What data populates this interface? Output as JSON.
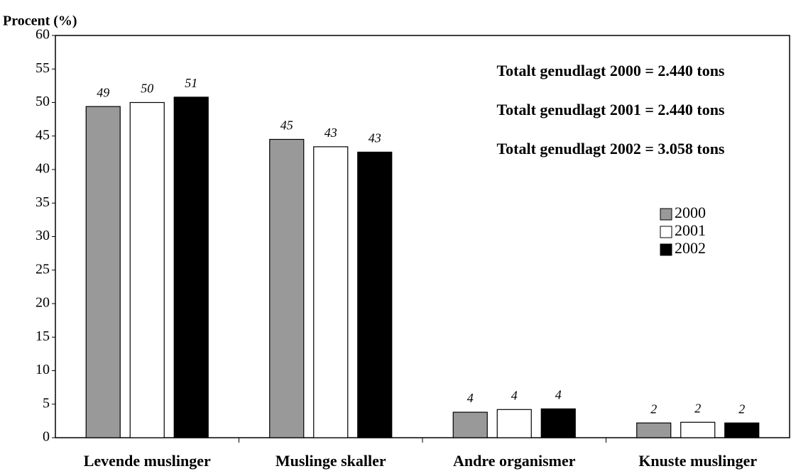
{
  "chart_data": {
    "type": "bar",
    "y_label": "Procent (%)",
    "categories": [
      "Levende muslinger",
      "Muslinge skaller",
      "Andre organismer",
      "Knuste muslinger"
    ],
    "series": [
      {
        "name": "2000",
        "color": "#999999",
        "values": [
          49.4,
          44.5,
          3.8,
          2.2
        ],
        "value_labels": [
          "49",
          "45",
          "4",
          "2"
        ]
      },
      {
        "name": "2001",
        "color": "#ffffff",
        "values": [
          50,
          43.4,
          4.2,
          2.3
        ],
        "value_labels": [
          "50",
          "43",
          "4",
          "2"
        ]
      },
      {
        "name": "2002",
        "color": "#000000",
        "values": [
          50.8,
          42.6,
          4.3,
          2.2
        ],
        "value_labels": [
          "51",
          "43",
          "4",
          "2"
        ]
      }
    ],
    "annotations": [
      "Totalt genudlagt 2000 =  2.440 tons",
      "Totalt genudlagt 2001 = 2.440 tons",
      "Totalt genudlagt 2002 = 3.058 tons"
    ],
    "ylim": [
      0,
      60
    ],
    "yticks": [
      0,
      5,
      10,
      15,
      20,
      25,
      30,
      35,
      40,
      45,
      50,
      55,
      60
    ],
    "grid": false,
    "legend": "right"
  }
}
